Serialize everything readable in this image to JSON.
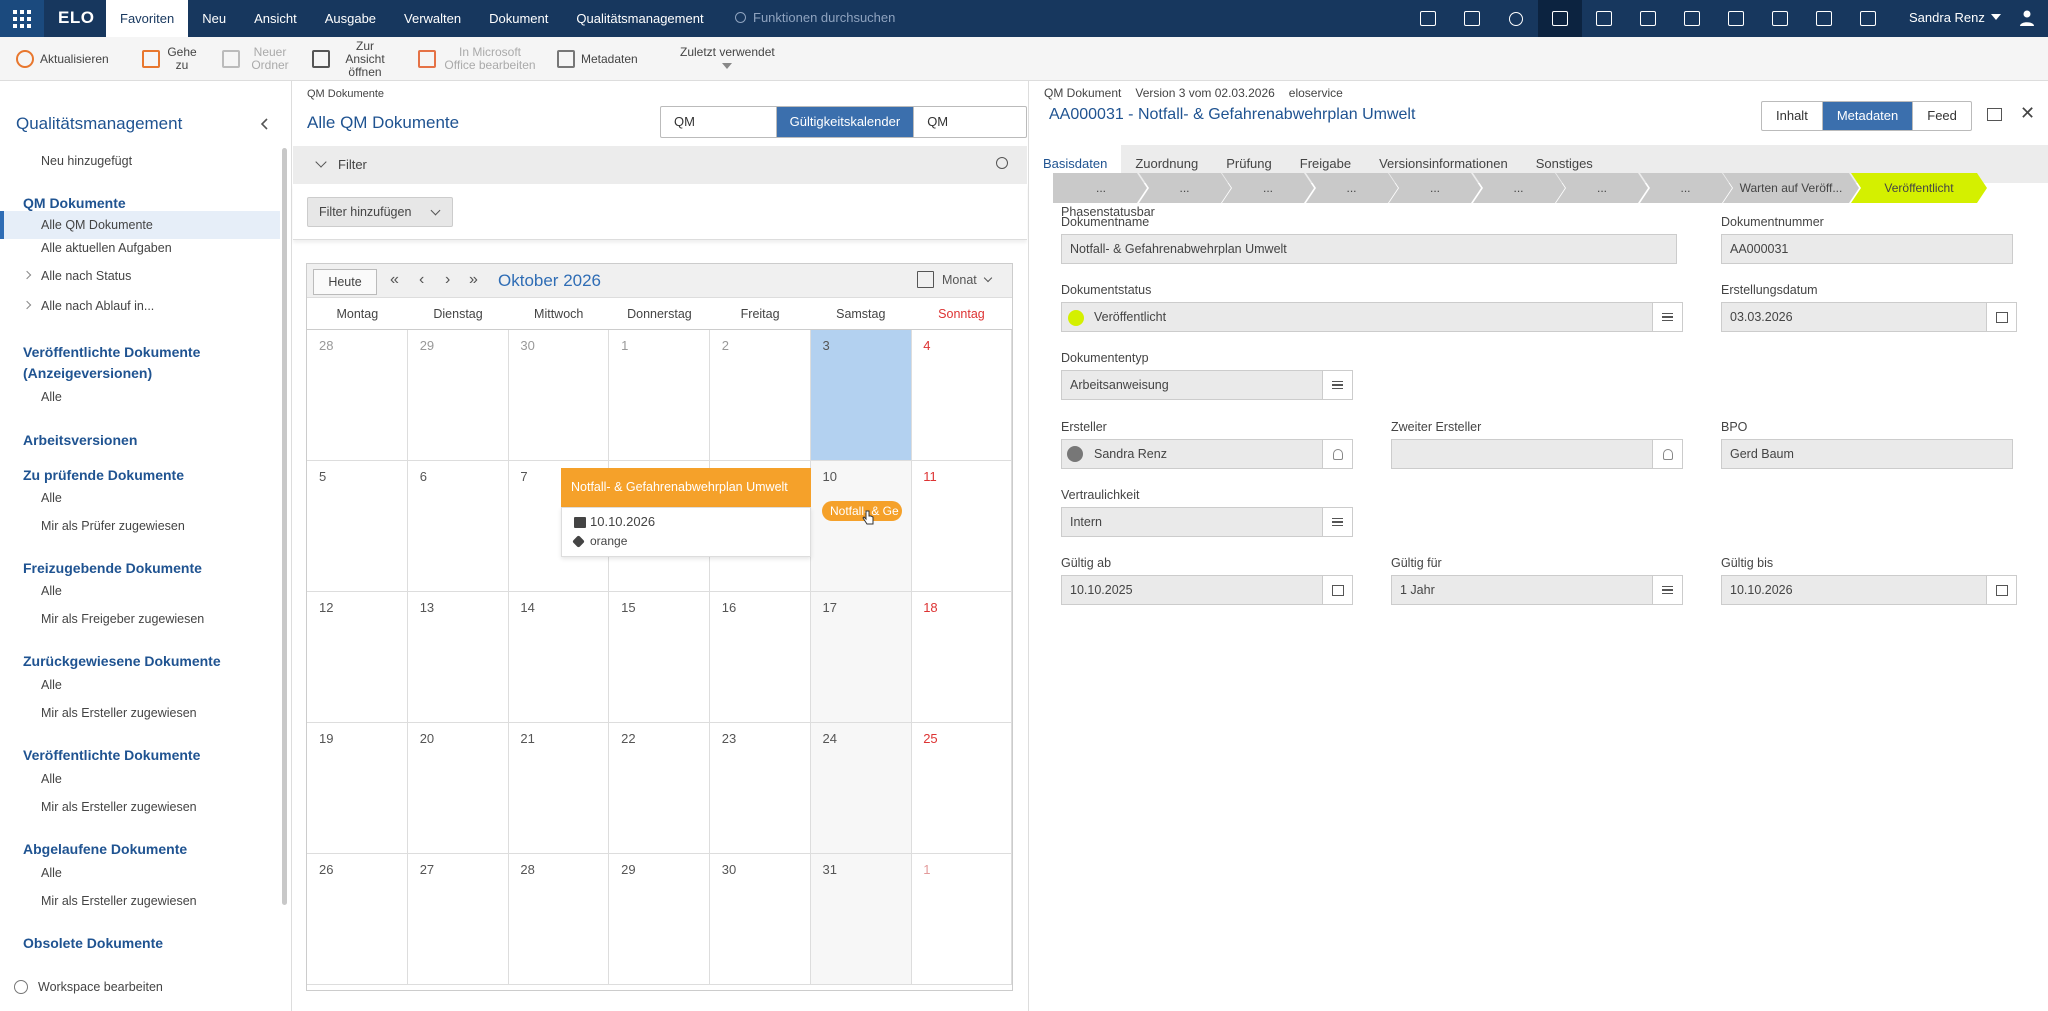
{
  "topbar": {
    "logo": "ELO",
    "menu": [
      "Favoriten",
      "Neu",
      "Ansicht",
      "Ausgabe",
      "Verwalten",
      "Dokument",
      "Qualitätsmanagement"
    ],
    "active_menu": 0,
    "search_placeholder": "Funktionen durchsuchen",
    "user": "Sandra Renz",
    "accent": "#17375e",
    "icons": [
      "calendar-icon",
      "task-check-icon",
      "search-icon",
      "documents-icon",
      "bookmark-icon",
      "image-icon",
      "hierarchy-icon",
      "chart-icon",
      "list-icon",
      "sun-icon",
      "grid-icon"
    ]
  },
  "toolbar": {
    "items": [
      {
        "label": "Aktualisieren",
        "disabled": false
      },
      {
        "label": "Gehe zu",
        "disabled": false
      },
      {
        "label": "Neuer Ordner",
        "disabled": true
      },
      {
        "label": "Zur Ansicht öffnen",
        "disabled": false
      },
      {
        "label": "In Microsoft Office bearbeiten",
        "disabled": true
      },
      {
        "label": "Metadaten",
        "disabled": false
      },
      {
        "label": "Zuletzt verwendet",
        "disabled": false
      }
    ]
  },
  "sidebar": {
    "title": "Qualitätsmanagement",
    "footer": "Workspace bearbeiten",
    "rows": [
      {
        "t": "item",
        "label": "Neu hinzugefügt"
      },
      {
        "t": "head",
        "label": "QM Dokumente"
      },
      {
        "t": "sel",
        "label": "Alle QM Dokumente"
      },
      {
        "t": "item",
        "label": "Alle aktuellen Aufgaben"
      },
      {
        "t": "item",
        "label": "Alle nach Status",
        "caret": true
      },
      {
        "t": "item",
        "label": "Alle nach Ablauf in...",
        "caret": true
      },
      {
        "t": "head",
        "label": "Veröffentlichte Dokumente (Anzeigeversionen)"
      },
      {
        "t": "item",
        "label": "Alle"
      },
      {
        "t": "head",
        "label": "Arbeitsversionen"
      },
      {
        "t": "head",
        "label": "Zu prüfende Dokumente"
      },
      {
        "t": "item",
        "label": "Alle"
      },
      {
        "t": "item",
        "label": "Mir als Prüfer zugewiesen"
      },
      {
        "t": "head",
        "label": "Freizugebende Dokumente"
      },
      {
        "t": "item",
        "label": "Alle"
      },
      {
        "t": "item",
        "label": "Mir als Freigeber zugewiesen"
      },
      {
        "t": "head",
        "label": "Zurückgewiesene Dokumente"
      },
      {
        "t": "item",
        "label": "Alle"
      },
      {
        "t": "item",
        "label": "Mir als Ersteller zugewiesen"
      },
      {
        "t": "head",
        "label": "Veröffentlichte Dokumente"
      },
      {
        "t": "item",
        "label": "Alle"
      },
      {
        "t": "item",
        "label": "Mir als Ersteller zugewiesen"
      },
      {
        "t": "head",
        "label": "Abgelaufene Dokumente"
      },
      {
        "t": "item",
        "label": "Alle"
      },
      {
        "t": "item",
        "label": "Mir als Ersteller zugewiesen"
      },
      {
        "t": "head",
        "label": "Obsolete Dokumente"
      }
    ]
  },
  "middle": {
    "breadcrumb": "QM Dokumente",
    "title": "Alle QM Dokumente",
    "view_tabs": [
      "QM Dokumente",
      "Gültigkeitskalender",
      "QM Dashboard"
    ],
    "active_view": 1,
    "filter_label": "Filter",
    "add_filter": "Filter hinzufügen"
  },
  "calendar": {
    "today_btn": "Heute",
    "month": "Oktober 2026",
    "view": "Monat",
    "weekdays": [
      "Montag",
      "Dienstag",
      "Mittwoch",
      "Donnerstag",
      "Freitag",
      "Samstag",
      "Sonntag"
    ],
    "weeks": [
      [
        "28",
        "29",
        "30",
        "1",
        "2",
        "3",
        "4"
      ],
      [
        "5",
        "6",
        "7",
        "8",
        "9",
        "10",
        "11"
      ],
      [
        "12",
        "13",
        "14",
        "15",
        "16",
        "17",
        "18"
      ],
      [
        "19",
        "20",
        "21",
        "22",
        "23",
        "24",
        "25"
      ],
      [
        "26",
        "27",
        "28",
        "29",
        "30",
        "31",
        "1"
      ]
    ],
    "today_cell": [
      0,
      5
    ],
    "event": {
      "title": "Notfall- & Gefahrenabwehrplan Umwelt",
      "date": "10.10.2026",
      "tag": "orange",
      "chip": "Notfall- & Ge",
      "color": "#f5a12a"
    }
  },
  "right": {
    "doctype": "QM Dokument",
    "version": "Version 3 vom 02.03.2026",
    "owner": "eloservice",
    "title": "AA000031 - Notfall- & Gefahrenabwehrplan Umwelt",
    "tabs": [
      "Inhalt",
      "Metadaten",
      "Feed"
    ],
    "active_tab": 1,
    "subtabs": [
      "Basisdaten",
      "Zuordnung",
      "Prüfung",
      "Freigabe",
      "Versionsinformationen",
      "Sonstiges"
    ],
    "phasebar_label": "Phasenstatusbar",
    "phases": [
      "...",
      "...",
      "...",
      "...",
      "...",
      "...",
      "...",
      "...",
      "Warten auf Veröff...",
      "Veröffentlicht"
    ],
    "phase_active_color": "#d4f000",
    "fields": {
      "dokumentname": {
        "label": "Dokumentname",
        "value": "Notfall- & Gefahrenabwehrplan Umwelt"
      },
      "dokumentnummer": {
        "label": "Dokumentnummer",
        "value": "AA000031"
      },
      "dokumentstatus": {
        "label": "Dokumentstatus",
        "value": "Veröffentlicht",
        "color": "#d4f000"
      },
      "erstellungsdatum": {
        "label": "Erstellungsdatum",
        "value": "03.03.2026"
      },
      "dokumenttyp": {
        "label": "Dokumententyp",
        "value": "Arbeitsanweisung"
      },
      "ersteller": {
        "label": "Ersteller",
        "value": "Sandra Renz"
      },
      "zweiter": {
        "label": "Zweiter Ersteller",
        "value": ""
      },
      "bpo": {
        "label": "BPO",
        "value": "Gerd Baum"
      },
      "vertraulichkeit": {
        "label": "Vertraulichkeit",
        "value": "Intern"
      },
      "gueltig_ab": {
        "label": "Gültig ab",
        "value": "10.10.2025"
      },
      "gueltig_fuer": {
        "label": "Gültig für",
        "value": "1 Jahr"
      },
      "gueltig_bis": {
        "label": "Gültig bis",
        "value": "10.10.2026"
      }
    }
  }
}
